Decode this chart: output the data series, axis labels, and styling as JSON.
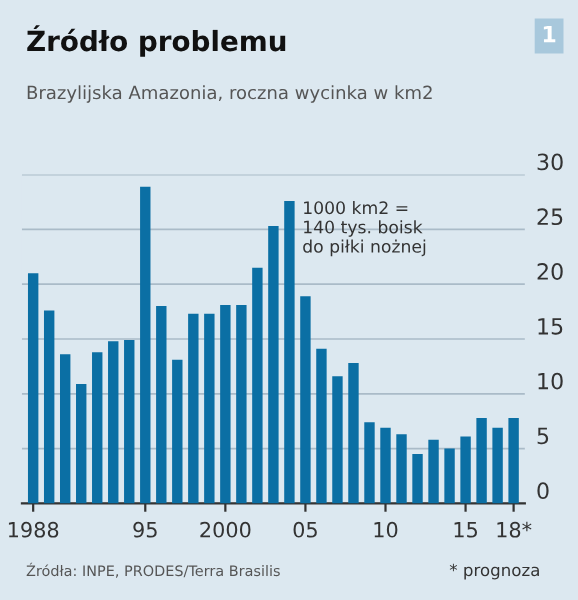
{
  "chart_data": {
    "type": "bar",
    "title": "Źródło problemu",
    "subtitle": "Brazylijska Amazonia, roczna wycinka w km2",
    "categories": [
      "1988",
      null,
      null,
      null,
      null,
      null,
      null,
      "95",
      null,
      null,
      null,
      null,
      "2000",
      null,
      null,
      null,
      null,
      "05",
      null,
      null,
      null,
      null,
      "10",
      null,
      null,
      null,
      null,
      "15",
      null,
      null,
      "18*"
    ],
    "values": [
      21.0,
      17.6,
      13.6,
      10.9,
      13.8,
      14.8,
      14.9,
      28.9,
      18.0,
      13.1,
      17.3,
      17.3,
      18.1,
      18.1,
      21.5,
      25.3,
      27.6,
      18.9,
      14.1,
      11.6,
      12.8,
      7.4,
      6.9,
      6.3,
      4.5,
      5.8,
      5.0,
      6.1,
      7.8,
      6.9,
      7.8
    ],
    "color": "#0b6fa4",
    "ylim": [
      0,
      30
    ],
    "yticks": [
      0,
      5,
      10,
      15,
      20,
      25,
      30
    ],
    "grid": "y",
    "legend": false,
    "annotations": [
      "1",
      "1000 km2 =\n140 tys. boisk\ndo piłki nożnej",
      "Źródła: INPE, PRODES/Terra Brasilis",
      "* prognoza"
    ]
  }
}
